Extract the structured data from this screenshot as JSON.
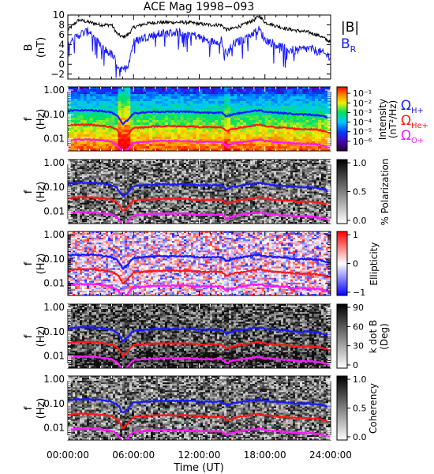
{
  "title": "ACE Mag 1998−093",
  "xlabel": "Time (UT)",
  "x_ticks": [
    "00:00:00",
    "06:00:00",
    "12:00:00",
    "18:00:00",
    "24:00:00"
  ],
  "colors": {
    "B_total": "#000000",
    "B_R": "#1a1aff",
    "H+": "#1a1aff",
    "He+": "#ff1a1a",
    "O+": "#ff1aff"
  },
  "chart_data": [
    {
      "type": "line",
      "panel": "B",
      "ylabel": "B",
      "yunit": "(nT)",
      "ylim": [
        -3,
        10
      ],
      "yticks": [
        "10",
        "8",
        "6",
        "4",
        "2",
        "0",
        "−2"
      ],
      "legend": [
        {
          "name": "|B|",
          "sub": "",
          "color": "#000000"
        },
        {
          "name": "B",
          "sub": "R",
          "color": "#1a1aff"
        }
      ],
      "x": [
        0,
        1,
        2,
        3,
        4,
        4.5,
        5,
        5.5,
        6,
        7,
        8,
        9,
        10,
        11,
        12,
        13,
        14,
        14.5,
        15,
        16,
        17,
        17.5,
        18,
        19,
        20,
        21,
        22,
        23,
        24
      ],
      "series": [
        {
          "name": "|B|",
          "values": [
            7,
            9,
            8.5,
            8,
            8,
            6.2,
            5.5,
            6,
            7.5,
            8.2,
            8.5,
            8.5,
            8.5,
            8.5,
            8.2,
            8,
            8,
            7,
            7.2,
            8,
            9,
            9.8,
            8.5,
            7.8,
            7.2,
            6.8,
            6.5,
            5.8,
            4.5
          ]
        },
        {
          "name": "B_R",
          "values": [
            4,
            6,
            6.8,
            3.5,
            2,
            0,
            -1.5,
            0,
            4.5,
            5.5,
            6,
            6.3,
            6.5,
            6.4,
            5.5,
            4.5,
            5,
            2,
            4,
            5,
            6.5,
            7,
            5,
            4,
            3,
            2.8,
            3.2,
            2.5,
            1.5
          ]
        }
      ]
    },
    {
      "type": "heatmap",
      "panel": "Power spectrum",
      "ylabel": "f",
      "yunit": "(Hz)",
      "yscale": "log",
      "yticks": [
        "1.00",
        "0.10",
        "0.01"
      ],
      "colorbar_label": "Intensity",
      "colorbar_unit": "(nT²/Hz)",
      "colorbar_ticks": [
        "10⁻¹",
        "10⁻²",
        "10⁻³",
        "10⁻⁴",
        "10⁻⁵",
        "10⁻⁶"
      ],
      "colormap": "rainbow",
      "legend": [
        {
          "name": "Ω",
          "sub": "H+",
          "color": "#1a1aff"
        },
        {
          "name": "Ω",
          "sub": "He+",
          "color": "#ff1a1a"
        },
        {
          "name": "Ω",
          "sub": "O+",
          "color": "#ff1aff"
        }
      ]
    },
    {
      "type": "heatmap",
      "panel": "Polarization",
      "ylabel": "f",
      "yunit": "(Hz)",
      "yscale": "log",
      "yticks": [
        "1.00",
        "0.10",
        "0.01"
      ],
      "colorbar_label": "% Polarization",
      "colorbar_unit": "",
      "colorbar_ticks": [
        "1.0",
        "0.5",
        "0.0"
      ],
      "colormap": "gray"
    },
    {
      "type": "heatmap",
      "panel": "Ellipticity",
      "ylabel": "f",
      "yunit": "(Hz)",
      "yscale": "log",
      "yticks": [
        "1.00",
        "0.10",
        "0.01"
      ],
      "colorbar_label": "Ellipticity",
      "colorbar_unit": "",
      "colorbar_ticks": [
        "1",
        "0",
        "−1"
      ],
      "colormap": "bwr"
    },
    {
      "type": "heatmap",
      "panel": "Wave normal angle",
      "ylabel": "f",
      "yunit": "(Hz)",
      "yscale": "log",
      "yticks": [
        "1.00",
        "0.10",
        "0.01"
      ],
      "colorbar_label": "k dot B",
      "colorbar_unit": "(Deg)",
      "colorbar_ticks": [
        "90",
        "60",
        "30",
        "0"
      ],
      "colormap": "gray"
    },
    {
      "type": "heatmap",
      "panel": "Coherency",
      "ylabel": "f",
      "yunit": "(Hz)",
      "yscale": "log",
      "yticks": [
        "1.00",
        "0.10",
        "0.01"
      ],
      "colorbar_label": "Coherency",
      "colorbar_unit": "",
      "colorbar_ticks": [
        "1.0",
        "0.5",
        "0.0"
      ],
      "colormap": "gray"
    }
  ],
  "gyrofrequency_lines": {
    "x": [
      0,
      1,
      2,
      3,
      4,
      4.5,
      5,
      5.5,
      6,
      7,
      8,
      9,
      10,
      11,
      12,
      13,
      14,
      14.5,
      15,
      16,
      17,
      17.5,
      18,
      19,
      20,
      21,
      22,
      23,
      24
    ],
    "H+": [
      0.14,
      0.15,
      0.15,
      0.14,
      0.12,
      0.09,
      0.04,
      0.06,
      0.11,
      0.12,
      0.13,
      0.13,
      0.13,
      0.13,
      0.12,
      0.12,
      0.12,
      0.08,
      0.1,
      0.12,
      0.14,
      0.15,
      0.13,
      0.12,
      0.11,
      0.1,
      0.1,
      0.09,
      0.07
    ],
    "He+": [
      0.035,
      0.038,
      0.038,
      0.035,
      0.03,
      0.023,
      0.01,
      0.015,
      0.028,
      0.03,
      0.033,
      0.033,
      0.033,
      0.033,
      0.03,
      0.03,
      0.03,
      0.02,
      0.025,
      0.03,
      0.035,
      0.038,
      0.033,
      0.03,
      0.028,
      0.025,
      0.025,
      0.023,
      0.018
    ],
    "O+": [
      0.0088,
      0.0094,
      0.0094,
      0.0088,
      0.0075,
      0.0056,
      0.0025,
      0.0038,
      0.0069,
      0.0075,
      0.0081,
      0.0081,
      0.0081,
      0.0081,
      0.0075,
      0.0075,
      0.0075,
      0.005,
      0.0063,
      0.0075,
      0.0088,
      0.0094,
      0.0081,
      0.0075,
      0.0069,
      0.0063,
      0.0063,
      0.0056,
      0.0044
    ]
  }
}
